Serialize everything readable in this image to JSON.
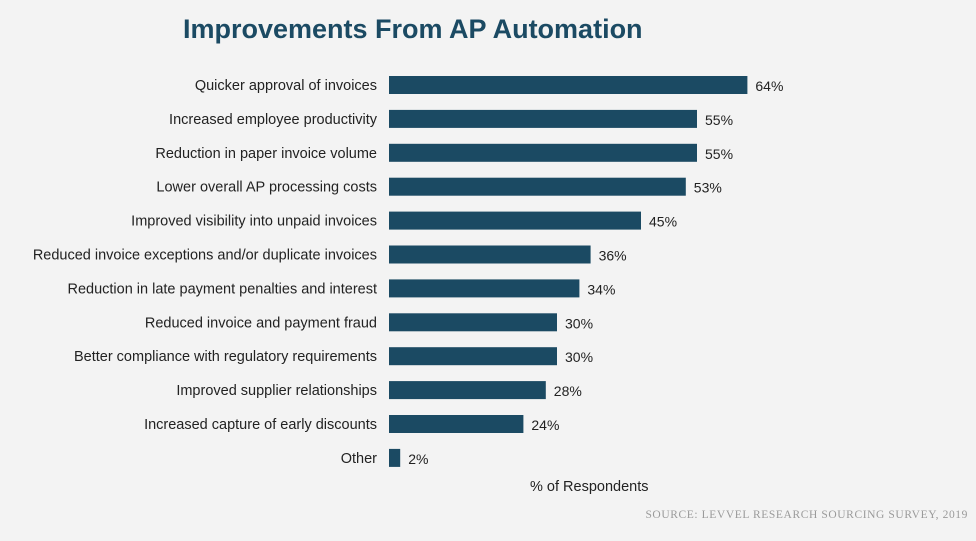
{
  "chart_data": {
    "type": "bar",
    "orientation": "horizontal",
    "title": "Improvements From AP Automation",
    "xlabel": "% of Respondents",
    "ylabel": "",
    "source": "SOURCE: LEVVEL RESEARCH SOURCING SURVEY, 2019",
    "categories": [
      "Quicker approval of invoices",
      "Increased employee productivity",
      "Reduction in paper invoice volume",
      "Lower overall AP processing costs",
      "Improved visibility into unpaid invoices",
      "Reduced invoice exceptions and/or duplicate invoices",
      "Reduction in late payment penalties and interest",
      "Reduced invoice and payment fraud",
      "Better compliance with regulatory requirements",
      "Improved supplier relationships",
      "Increased capture of early discounts",
      "Other"
    ],
    "values": [
      64,
      55,
      55,
      53,
      45,
      36,
      34,
      30,
      30,
      28,
      24,
      2
    ],
    "value_labels": [
      "64%",
      "55%",
      "55%",
      "53%",
      "45%",
      "36%",
      "34%",
      "30%",
      "30%",
      "28%",
      "24%",
      "2%"
    ],
    "unit": "%",
    "grid": false,
    "legend": "none",
    "bar_color": "#1b4a63"
  }
}
